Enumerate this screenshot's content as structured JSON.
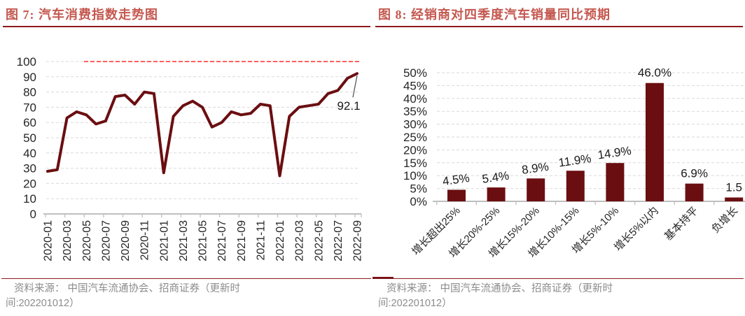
{
  "source_note": {
    "line1": "资料来源： 中国汽车流通协会、招商证券（更新时",
    "line2": "间:202201012）"
  },
  "colors": {
    "title_text": "#c4584f",
    "divider": "#8e1a1d",
    "series_maroon": "#6b0e11",
    "reference_red": "#ff2a2a",
    "source_text": "#8c8c8c",
    "gridline": "#d9d9d9",
    "axis_line": "#bfbfbf"
  },
  "chart_data": [
    {
      "type": "line",
      "title": "图 7: 汽车消费指数走势图",
      "x_months": [
        "2020-01",
        "2020-02",
        "2020-03",
        "2020-04",
        "2020-05",
        "2020-06",
        "2020-07",
        "2020-08",
        "2020-09",
        "2020-10",
        "2020-11",
        "2020-12",
        "2021-01",
        "2021-02",
        "2021-03",
        "2021-04",
        "2021-05",
        "2021-06",
        "2021-07",
        "2021-08",
        "2021-09",
        "2021-10",
        "2021-11",
        "2021-12",
        "2022-01",
        "2022-02",
        "2022-03",
        "2022-04",
        "2022-05",
        "2022-06",
        "2022-07",
        "2022-08",
        "2022-09"
      ],
      "x_tick_labels": [
        "2020-01",
        "2020-03",
        "2020-05",
        "2020-07",
        "2020-09",
        "2020-11",
        "2021-01",
        "2021-03",
        "2021-05",
        "2021-07",
        "2021-09",
        "2021-11",
        "2022-01",
        "2022-03",
        "2022-05",
        "2022-07",
        "2022-09"
      ],
      "months_per_tick": 2,
      "values": [
        28,
        29,
        63,
        67,
        65,
        59,
        61,
        77,
        78,
        72,
        80,
        79,
        27,
        64,
        71,
        74,
        70,
        57,
        60,
        67,
        65,
        66,
        72,
        71,
        25,
        64,
        70,
        71,
        72,
        79,
        81,
        89,
        92.1
      ],
      "ylim": [
        0,
        100
      ],
      "ytick_step": 10,
      "ytick_labels": [
        "0",
        "10",
        "20",
        "30",
        "40",
        "50",
        "60",
        "70",
        "80",
        "90",
        "100"
      ],
      "series_color": "#6b0e11",
      "reference_line": {
        "value": 100,
        "color": "#ff2a2a",
        "style": "dashed"
      },
      "annotation": {
        "text": "92.1",
        "target_index": 32
      },
      "grid": "horizontal-dashed",
      "legend": "none"
    },
    {
      "type": "bar",
      "title": "图 8: 经销商对四季度汽车销量同比预期",
      "categories": [
        "增长超出25%",
        "增长20%-25%",
        "增长15%-20%",
        "增长10%-15%",
        "增长5%-10%",
        "增长5%以内",
        "基本持平",
        "负增长"
      ],
      "values": [
        4.5,
        5.4,
        8.9,
        11.9,
        14.9,
        46.0,
        6.9,
        1.5
      ],
      "data_labels": [
        "4.5%",
        "5.4%",
        "8.9%",
        "11.9%",
        "14.9%",
        "46.0%",
        "6.9%",
        "1.5"
      ],
      "ylim": [
        0,
        50
      ],
      "ytick_step": 5,
      "ytick_labels": [
        "0%",
        "5%",
        "10%",
        "15%",
        "20%",
        "25%",
        "30%",
        "35%",
        "40%",
        "45%",
        "50%"
      ],
      "bar_color": "#6b0e11",
      "label_tilt_deg": [
        -8,
        -8,
        -8,
        -8,
        -8,
        0,
        0,
        0
      ],
      "grid": "horizontal-dashed",
      "legend": "none"
    }
  ]
}
